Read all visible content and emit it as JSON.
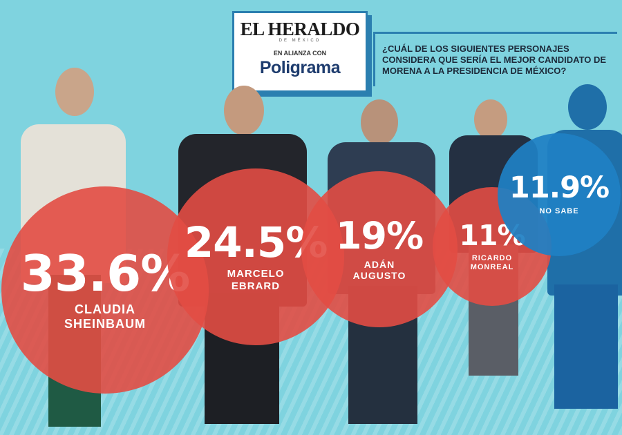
{
  "header": {
    "brand_title": "EL HERALDO",
    "brand_subtitle": "DE MÉXICO",
    "alliance": "EN ALIANZA CON",
    "partner": "Poligrama",
    "question": "¿CUÁL DE LOS SIGUIENTES PERSONAJES CONSIDERA QUE SERÍA EL MEJOR CANDIDATO DE MORENA A LA PRESIDENCIA DE MÉXICO?"
  },
  "chart_data": {
    "type": "bar",
    "title": "¿CUÁL DE LOS SIGUIENTES PERSONAJES CONSIDERA QUE SERÍA EL MEJOR CANDIDATO DE MORENA A LA PRESIDENCIA DE MÉXICO?",
    "categories": [
      "CLAUDIA SHEINBAUM",
      "MARCELO EBRARD",
      "ADÁN AUGUSTO",
      "RICARDO MONREAL",
      "NO SABE"
    ],
    "values": [
      33.6,
      24.5,
      19,
      11,
      11.9
    ],
    "value_labels": [
      "33.6%",
      "24.5%",
      "19%",
      "11%",
      "11.9%"
    ],
    "name_lines": [
      [
        "CLAUDIA",
        "SHEINBAUM"
      ],
      [
        "MARCELO",
        "EBRARD"
      ],
      [
        "ADÁN",
        "AUGUSTO"
      ],
      [
        "RICARDO",
        "MONREAL"
      ],
      [
        "NO SABE"
      ]
    ],
    "unit": "%",
    "colors": {
      "candidate_bubble": "#e24c44",
      "unknown_bubble": "#1f80c4",
      "background": "#7fd3df"
    }
  }
}
